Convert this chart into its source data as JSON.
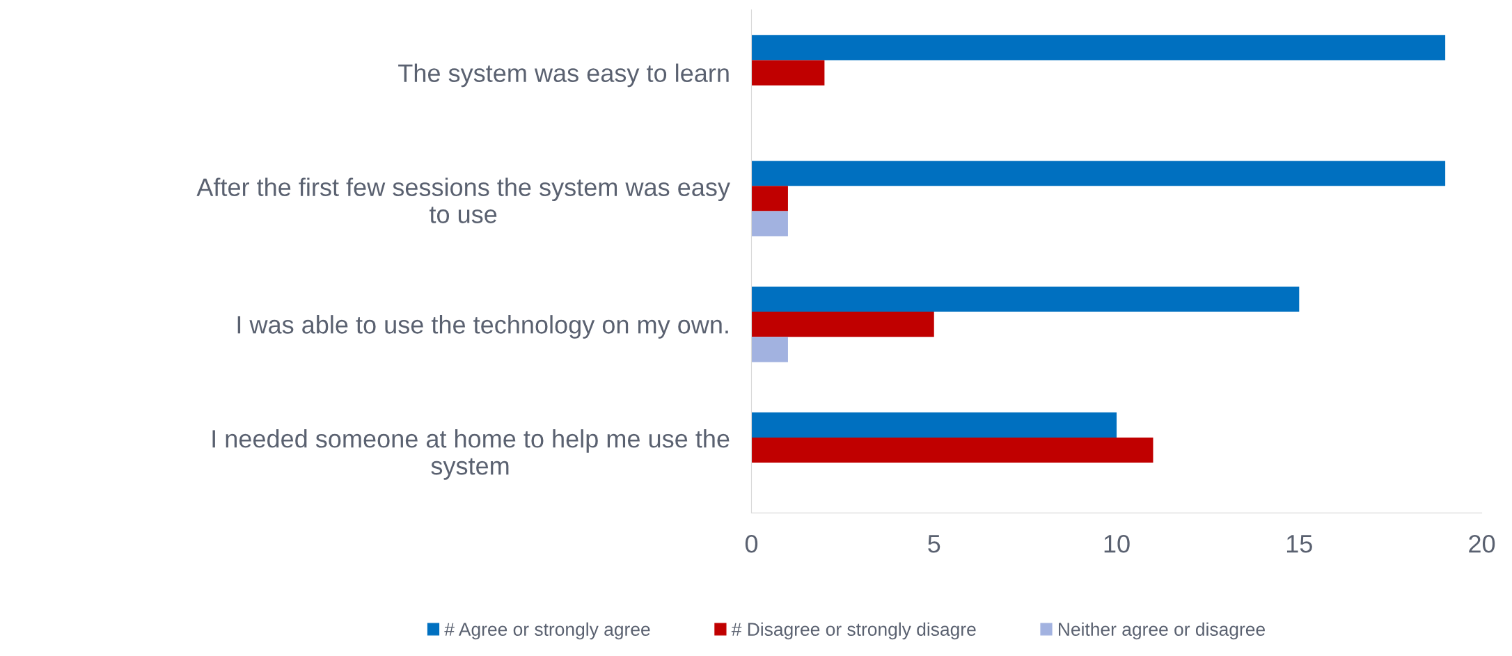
{
  "chart_data": {
    "type": "bar",
    "orientation": "horizontal",
    "categories": [
      "The system was easy to learn",
      "After the first few sessions the system was easy\nto use",
      "I was able to use the technology on my own.",
      "I needed someone at home to help me use the\nsystem"
    ],
    "series": [
      {
        "name": "# Agree or strongly agree",
        "color": "#0070c0",
        "values": [
          19,
          19,
          15,
          10
        ]
      },
      {
        "name": "# Disagree or strongly disagre",
        "color": "#c00000",
        "values": [
          2,
          1,
          5,
          11
        ]
      },
      {
        "name": "Neither agree or disagree",
        "color": "#a2b2e0",
        "values": [
          null,
          1,
          1,
          null
        ]
      }
    ],
    "xlim": [
      0,
      20
    ],
    "xticks": [
      0,
      5,
      10,
      15,
      20
    ],
    "grid": false,
    "legend": "bottom"
  }
}
